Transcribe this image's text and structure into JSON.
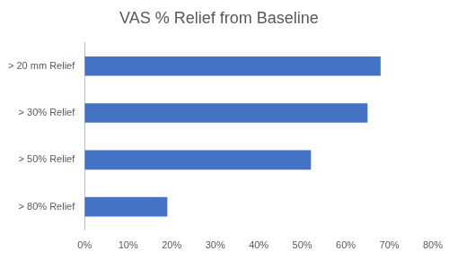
{
  "chart_data": {
    "type": "bar",
    "orientation": "horizontal",
    "title": "VAS % Relief from Baseline",
    "categories": [
      "> 20 mm Relief",
      "> 30% Relief",
      "> 50% Relief",
      "> 80% Relief"
    ],
    "values": [
      68,
      65,
      52,
      19
    ],
    "color": "#4472c4",
    "xlim": [
      0,
      80
    ],
    "xticks": [
      {
        "value": 0,
        "label": "0%"
      },
      {
        "value": 10,
        "label": "10%"
      },
      {
        "value": 20,
        "label": "20%"
      },
      {
        "value": 30,
        "label": "30%"
      },
      {
        "value": 40,
        "label": "40%"
      },
      {
        "value": 50,
        "label": "50%"
      },
      {
        "value": 60,
        "label": "60%"
      },
      {
        "value": 70,
        "label": "70%"
      },
      {
        "value": 80,
        "label": "80%"
      }
    ],
    "grid": false
  }
}
